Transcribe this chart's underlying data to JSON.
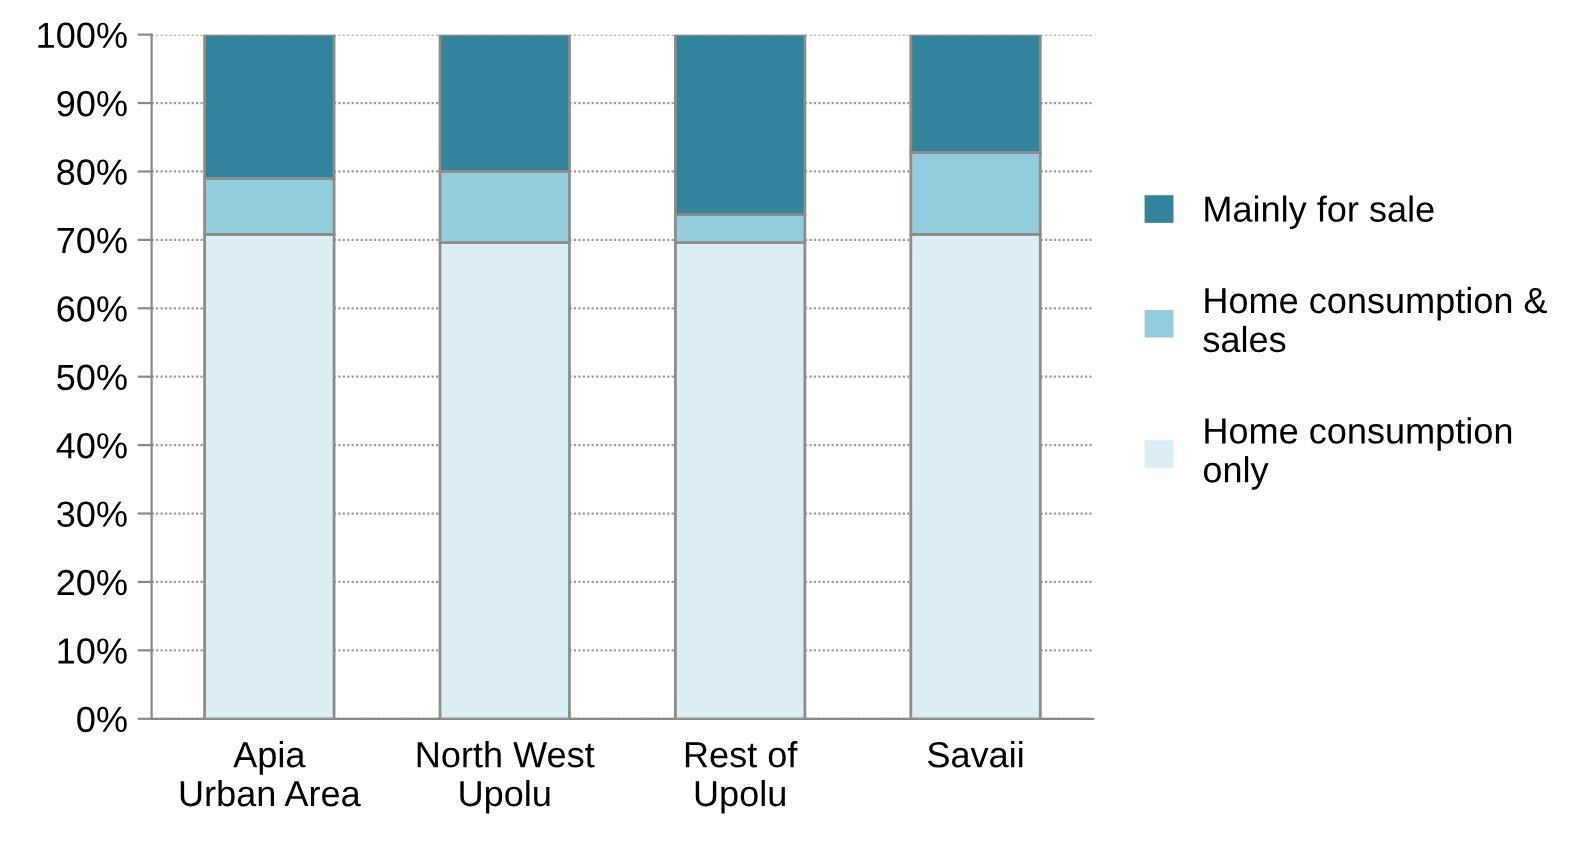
{
  "chart_data": {
    "type": "bar",
    "stacked": true,
    "categories": [
      "Apia\nUrban Area",
      "North West\nUpolu",
      "Rest of\nUpolu",
      "Savaii"
    ],
    "series": [
      {
        "name": "Home consumption\nonly",
        "color": "#dbeef3",
        "values": [
          70.8,
          69.6,
          69.6,
          70.8
        ]
      },
      {
        "name": "Home consumption &\nsales",
        "color": "#93cddd",
        "values": [
          8.2,
          10.4,
          4.1,
          12
        ]
      },
      {
        "name": "Mainly for sale",
        "color": "#31849b",
        "values": [
          21,
          20,
          26.3,
          17.2
        ]
      }
    ],
    "ylim": [
      0,
      100
    ],
    "yticks": [
      {
        "value": 0,
        "label": "0%"
      },
      {
        "value": 10,
        "label": "10%"
      },
      {
        "value": 20,
        "label": "20%"
      },
      {
        "value": 30,
        "label": "30%"
      },
      {
        "value": 40,
        "label": "40%"
      },
      {
        "value": 50,
        "label": "50%"
      },
      {
        "value": 60,
        "label": "60%"
      },
      {
        "value": 70,
        "label": "70%"
      },
      {
        "value": 80,
        "label": "80%"
      },
      {
        "value": 90,
        "label": "90%"
      },
      {
        "value": 100,
        "label": "100%"
      }
    ],
    "grid": "y",
    "legend": "right"
  }
}
